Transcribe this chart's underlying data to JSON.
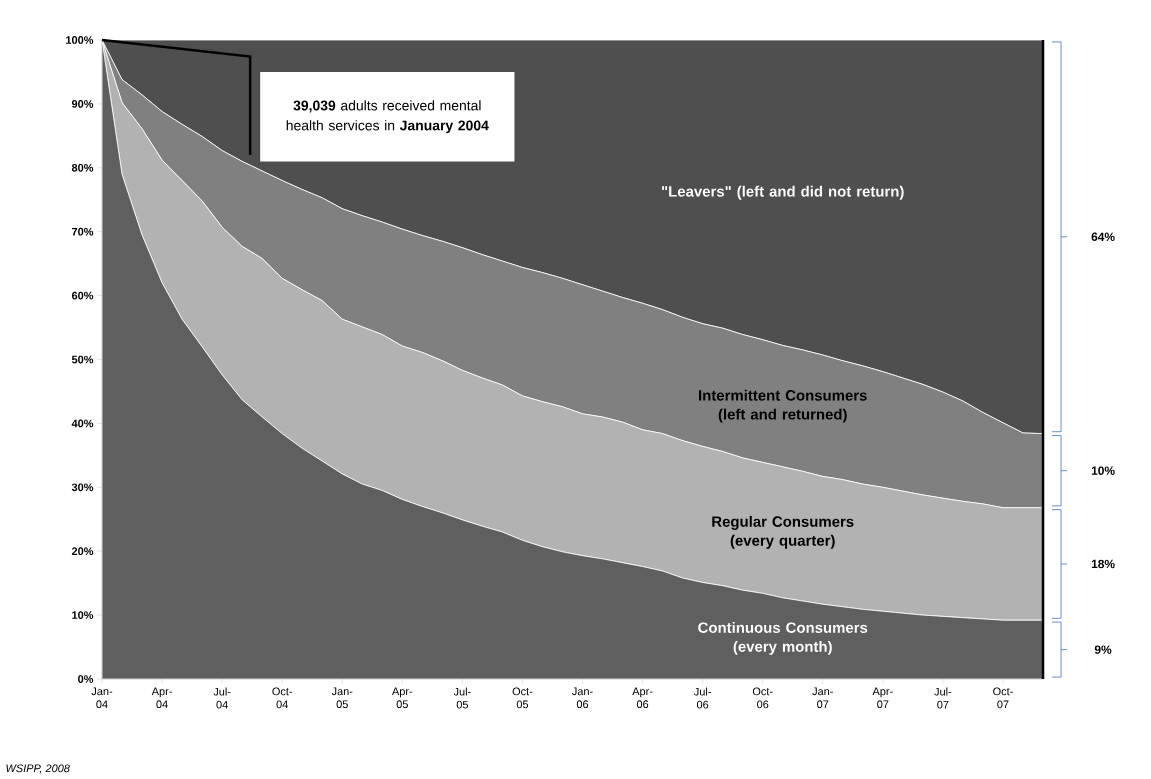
{
  "chart_data": {
    "type": "area",
    "stacked": true,
    "categories": [
      "Jan-04",
      null,
      null,
      "Apr-04",
      null,
      null,
      "Jul-04",
      null,
      null,
      "Oct-04",
      null,
      null,
      "Jan-05",
      null,
      null,
      "Apr-05",
      null,
      null,
      "Jul-05",
      null,
      null,
      "Oct-05",
      null,
      null,
      "Jan-06",
      null,
      null,
      "Apr-06",
      null,
      null,
      "Jul-06",
      null,
      null,
      "Oct-06",
      null,
      null,
      "Jan-07",
      null,
      null,
      "Apr-07",
      null,
      null,
      "Jul-07",
      null,
      null,
      "Oct-07",
      null,
      null
    ],
    "series": [
      {
        "name": "Continuous Consumers (every month)",
        "color": "#5f5f5f",
        "values": [
          100,
          79.0,
          69.5,
          62.0,
          56.3,
          52.0,
          47.6,
          43.7,
          41.0,
          38.4,
          36.1,
          34.1,
          32.1,
          30.5,
          29.5,
          28.1,
          27.0,
          26.0,
          24.9,
          23.9,
          23.0,
          21.7,
          20.7,
          19.9,
          19.3,
          18.8,
          18.2,
          17.6,
          16.9,
          15.8,
          15.1,
          14.6,
          13.9,
          13.4,
          12.7,
          12.2,
          11.7,
          11.3,
          10.9,
          10.6,
          10.3,
          10.0,
          9.8,
          9.6,
          9.4,
          9.2,
          9.2,
          9.2
        ]
      },
      {
        "name": "Regular Consumers (every quarter)",
        "color": "#b2b2b2",
        "values": [
          0,
          11.2,
          16.6,
          19.2,
          21.7,
          22.8,
          23.1,
          24.0,
          24.8,
          24.3,
          24.8,
          25.1,
          24.2,
          24.6,
          24.4,
          24.0,
          24.1,
          23.8,
          23.4,
          23.2,
          23.0,
          22.6,
          22.7,
          22.7,
          22.2,
          22.2,
          22.0,
          21.4,
          21.5,
          21.5,
          21.3,
          21.0,
          20.7,
          20.5,
          20.5,
          20.3,
          20.0,
          19.9,
          19.6,
          19.4,
          19.1,
          18.8,
          18.5,
          18.2,
          18.0,
          17.6,
          17.6,
          17.6
        ]
      },
      {
        "name": "Intermittent Consumers (left and returned)",
        "color": "#808080",
        "values": [
          0,
          3.6,
          5.3,
          7.6,
          8.8,
          10.1,
          12.0,
          13.3,
          13.7,
          15.3,
          15.7,
          16.1,
          17.3,
          17.4,
          17.6,
          18.3,
          18.3,
          18.7,
          19.2,
          19.3,
          19.4,
          20.1,
          20.2,
          20.1,
          20.2,
          19.7,
          19.5,
          19.8,
          19.4,
          19.3,
          19.2,
          19.3,
          19.3,
          19.2,
          19.0,
          19.0,
          19.0,
          18.6,
          18.5,
          18.1,
          17.7,
          17.3,
          16.6,
          15.7,
          14.3,
          13.3,
          11.7,
          11.6
        ]
      },
      {
        "name": "\"Leavers\" (left and did not return)",
        "color": "#4f4f4f",
        "values": [
          0,
          6.2,
          8.6,
          11.2,
          13.2,
          15.1,
          17.3,
          19.0,
          20.5,
          22.0,
          23.4,
          24.7,
          26.4,
          27.5,
          28.5,
          29.6,
          30.6,
          31.5,
          32.5,
          33.6,
          34.6,
          35.6,
          36.4,
          37.3,
          38.3,
          39.3,
          40.3,
          41.2,
          42.2,
          43.4,
          44.4,
          45.1,
          46.1,
          46.9,
          47.8,
          48.5,
          49.3,
          50.2,
          51.0,
          51.9,
          52.9,
          53.9,
          55.1,
          56.5,
          58.3,
          59.9,
          61.5,
          61.6
        ]
      }
    ],
    "ylim": [
      0,
      100
    ],
    "yticks": [
      {
        "value": 0,
        "label": "0%"
      },
      {
        "value": 10,
        "label": "10%"
      },
      {
        "value": 20,
        "label": "20%"
      },
      {
        "value": 30,
        "label": "30%"
      },
      {
        "value": 40,
        "label": "40%"
      },
      {
        "value": 50,
        "label": "50%"
      },
      {
        "value": 60,
        "label": "60%"
      },
      {
        "value": 70,
        "label": "70%"
      },
      {
        "value": 80,
        "label": "80%"
      },
      {
        "value": 90,
        "label": "90%"
      },
      {
        "value": 100,
        "label": "100%"
      }
    ],
    "annotations": [
      "64%",
      "10%",
      "18%",
      "9%",
      "WSIPP, 2008",
      "**39,039** adults received mental health services in **January 2004**"
    ]
  }
}
